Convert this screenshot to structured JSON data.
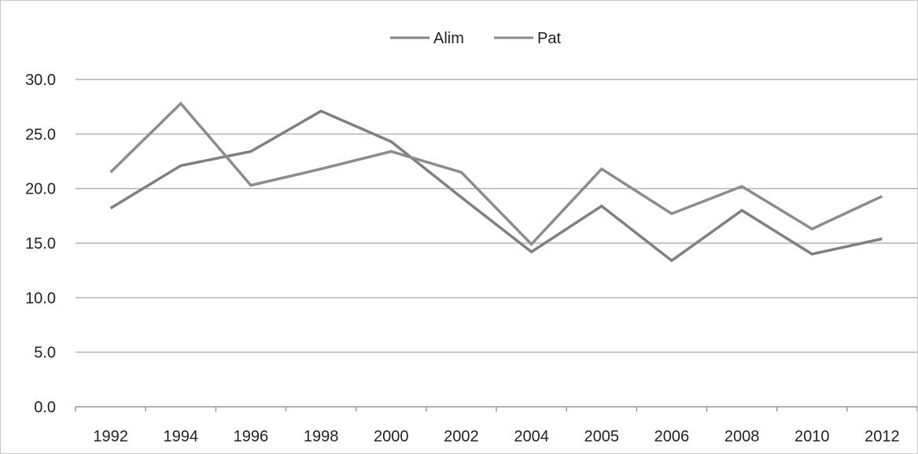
{
  "chart_data": {
    "type": "line",
    "title": "",
    "xlabel": "",
    "ylabel": "",
    "categories": [
      "1992",
      "1994",
      "1996",
      "1998",
      "2000",
      "2002",
      "2004",
      "2005",
      "2006",
      "2008",
      "2010",
      "2012"
    ],
    "series": [
      {
        "name": "Alim",
        "values": [
          18.2,
          22.1,
          23.4,
          27.1,
          24.3,
          19.2,
          14.2,
          18.4,
          13.4,
          18.0,
          14.0,
          15.4
        ],
        "color": "#808080"
      },
      {
        "name": "Pat",
        "values": [
          21.5,
          27.8,
          20.3,
          21.8,
          23.4,
          21.5,
          14.9,
          21.8,
          17.7,
          20.2,
          16.3,
          19.3
        ],
        "color": "#8c8c8c"
      }
    ],
    "ylim": [
      0,
      30
    ],
    "yticks": [
      "0.0",
      "5.0",
      "10.0",
      "15.0",
      "20.0",
      "25.0",
      "30.0"
    ],
    "grid": true,
    "legend_position": "top-center"
  }
}
